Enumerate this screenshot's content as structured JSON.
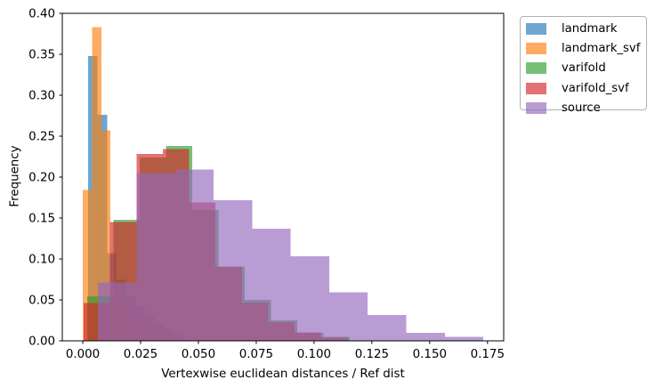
{
  "axes": {
    "xlabel": "Vertexwise euclidean distances / Ref dist",
    "ylabel": "Frequency",
    "xlim": [
      -0.00885,
      0.182
    ],
    "ylim": [
      0,
      0.4
    ],
    "xticks": [
      "0.000",
      "0.025",
      "0.050",
      "0.075",
      "0.100",
      "0.125",
      "0.150",
      "0.175"
    ],
    "yticks": [
      "0.00",
      "0.05",
      "0.10",
      "0.15",
      "0.20",
      "0.25",
      "0.30",
      "0.35",
      "0.40"
    ],
    "spine_color": "#000000",
    "tick_length": 3.5
  },
  "chart_data": {
    "type": "bar",
    "subtype": "overlapping-histogram",
    "title": "",
    "xlabel": "Vertexwise euclidean distances / Ref dist",
    "ylabel": "Frequency",
    "grid": false,
    "alpha": 0.65,
    "legend_position": "outside-upper-right",
    "series": [
      {
        "name": "landmark",
        "color": "#1f77b4",
        "bin_start": 0.0023,
        "bin_width": 0.0041,
        "heights": [
          0.348,
          0.276,
          0.107,
          0.075,
          0.055,
          0.042,
          0.03,
          0.022,
          0.014,
          0.009
        ]
      },
      {
        "name": "landmark_svf",
        "color": "#ff7f0e",
        "bin_start": 0.0,
        "bin_width": 0.004,
        "heights": [
          0.184,
          0.383,
          0.257,
          0.06,
          0.045,
          0.03,
          0.018,
          0.012,
          0.007,
          0.004
        ]
      },
      {
        "name": "varifold",
        "color": "#2ca02c",
        "bin_start": 0.0019,
        "bin_width": 0.01135,
        "heights": [
          0.0545,
          0.148,
          0.224,
          0.238,
          0.16,
          0.09,
          0.05,
          0.025,
          0.01,
          0.005
        ]
      },
      {
        "name": "varifold_svf",
        "color": "#d62728",
        "bin_start": 0.0004,
        "bin_width": 0.0114,
        "heights": [
          0.046,
          0.145,
          0.228,
          0.234,
          0.169,
          0.091,
          0.047,
          0.023,
          0.0105,
          0.004
        ]
      },
      {
        "name": "source",
        "color": "#9467bd",
        "bin_start": 0.0066,
        "bin_width": 0.01666,
        "heights": [
          0.071,
          0.205,
          0.209,
          0.172,
          0.137,
          0.103,
          0.059,
          0.0315,
          0.0098,
          0.0051
        ]
      }
    ]
  },
  "legend": {
    "entries": [
      "landmark",
      "landmark_svf",
      "varifold",
      "varifold_svf",
      "source"
    ]
  }
}
